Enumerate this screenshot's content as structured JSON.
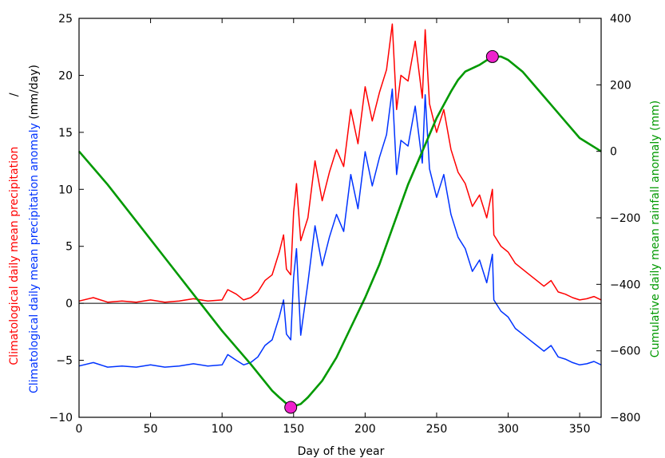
{
  "chart_data": {
    "type": "line",
    "title": "",
    "xlabel": "Day of the year",
    "ylabel_left": {
      "line1": {
        "red": "Climatological daily mean precipitation",
        "black": "/"
      },
      "line2": {
        "blue": "Climatological daily mean precipitation anomaly",
        "black": "(mm/day)"
      }
    },
    "ylabel_right": "Cumulative daily mean rainfall anomaly (mm)",
    "xlim": [
      0,
      365
    ],
    "ylim_left": [
      -10,
      25
    ],
    "ylim_right": [
      -800,
      400
    ],
    "xticks": [
      "0",
      "50",
      "100",
      "150",
      "200",
      "250",
      "300",
      "350"
    ],
    "yticks_left": [
      "−10",
      "−5",
      "0",
      "5",
      "10",
      "15",
      "20",
      "25"
    ],
    "yticks_right": [
      "−800",
      "−600",
      "−400",
      "−200",
      "0",
      "200",
      "400"
    ],
    "zero_line": 0,
    "grid": false,
    "colors": {
      "precipitation": "#ff0000",
      "anomaly": "#0033ff",
      "cumulative": "#009900",
      "marker_fill": "#ee22cc"
    },
    "series": [
      {
        "key": "precipitation",
        "axis": "left",
        "x": [
          0,
          10,
          20,
          30,
          40,
          50,
          60,
          70,
          80,
          90,
          100,
          104,
          110,
          115,
          120,
          125,
          130,
          135,
          140,
          143,
          145,
          148,
          150,
          152,
          155,
          160,
          165,
          170,
          175,
          180,
          185,
          190,
          195,
          200,
          205,
          210,
          215,
          219,
          222,
          225,
          230,
          235,
          240,
          242,
          245,
          250,
          255,
          260,
          265,
          270,
          275,
          280,
          285,
          289,
          290,
          295,
          300,
          305,
          310,
          315,
          320,
          325,
          330,
          335,
          340,
          345,
          350,
          355,
          360,
          365
        ],
        "y": [
          0.2,
          0.5,
          0.1,
          0.2,
          0.1,
          0.3,
          0.1,
          0.2,
          0.4,
          0.2,
          0.3,
          1.2,
          0.8,
          0.3,
          0.5,
          1.0,
          2.0,
          2.5,
          4.5,
          6.0,
          3.0,
          2.5,
          8.0,
          10.5,
          5.5,
          7.5,
          12.5,
          9.0,
          11.5,
          13.5,
          12.0,
          17.0,
          14.0,
          19.0,
          16.0,
          18.5,
          20.5,
          24.5,
          17.0,
          20.0,
          19.5,
          23.0,
          18.0,
          24.0,
          17.5,
          15.0,
          17.0,
          13.5,
          11.5,
          10.5,
          8.5,
          9.5,
          7.5,
          10.0,
          6.0,
          5.0,
          4.5,
          3.5,
          3.0,
          2.5,
          2.0,
          1.5,
          2.0,
          1.0,
          0.8,
          0.5,
          0.3,
          0.4,
          0.6,
          0.3
        ]
      },
      {
        "key": "anomaly",
        "axis": "left",
        "x": [
          0,
          10,
          20,
          30,
          40,
          50,
          60,
          70,
          80,
          90,
          100,
          104,
          110,
          115,
          120,
          125,
          130,
          135,
          140,
          143,
          145,
          148,
          150,
          152,
          155,
          160,
          165,
          170,
          175,
          180,
          185,
          190,
          195,
          200,
          205,
          210,
          215,
          219,
          222,
          225,
          230,
          235,
          240,
          242,
          245,
          250,
          255,
          260,
          265,
          270,
          275,
          280,
          285,
          289,
          290,
          295,
          300,
          305,
          310,
          315,
          320,
          325,
          330,
          335,
          340,
          345,
          350,
          355,
          360,
          365
        ],
        "y": [
          -5.5,
          -5.2,
          -5.6,
          -5.5,
          -5.6,
          -5.4,
          -5.6,
          -5.5,
          -5.3,
          -5.5,
          -5.4,
          -4.5,
          -5.0,
          -5.4,
          -5.2,
          -4.7,
          -3.7,
          -3.2,
          -1.2,
          0.3,
          -2.7,
          -3.2,
          2.3,
          4.8,
          -2.8,
          1.8,
          6.8,
          3.3,
          5.8,
          7.8,
          6.3,
          11.3,
          8.3,
          13.3,
          10.3,
          12.8,
          14.8,
          18.8,
          11.3,
          14.3,
          13.8,
          17.3,
          12.3,
          18.3,
          11.8,
          9.3,
          11.3,
          7.8,
          5.8,
          4.8,
          2.8,
          3.8,
          1.8,
          4.3,
          0.3,
          -0.7,
          -1.2,
          -2.2,
          -2.7,
          -3.2,
          -3.7,
          -4.2,
          -3.7,
          -4.7,
          -4.9,
          -5.2,
          -5.4,
          -5.3,
          -5.1,
          -5.4
        ]
      },
      {
        "key": "cumulative",
        "axis": "right",
        "x": [
          0,
          20,
          40,
          60,
          80,
          100,
          120,
          135,
          140,
          148,
          155,
          160,
          170,
          180,
          190,
          200,
          210,
          220,
          230,
          240,
          250,
          260,
          265,
          270,
          280,
          289,
          295,
          300,
          310,
          320,
          330,
          340,
          350,
          365
        ],
        "y": [
          0,
          -100,
          -210,
          -320,
          -430,
          -540,
          -640,
          -720,
          -740,
          -770,
          -760,
          -740,
          -690,
          -620,
          -530,
          -440,
          -340,
          -220,
          -100,
          0,
          100,
          180,
          215,
          240,
          260,
          285,
          285,
          275,
          240,
          190,
          140,
          90,
          40,
          0
        ]
      }
    ],
    "markers": [
      {
        "x": 148,
        "y": -770,
        "axis": "right"
      },
      {
        "x": 289,
        "y": 285,
        "axis": "right"
      }
    ]
  }
}
